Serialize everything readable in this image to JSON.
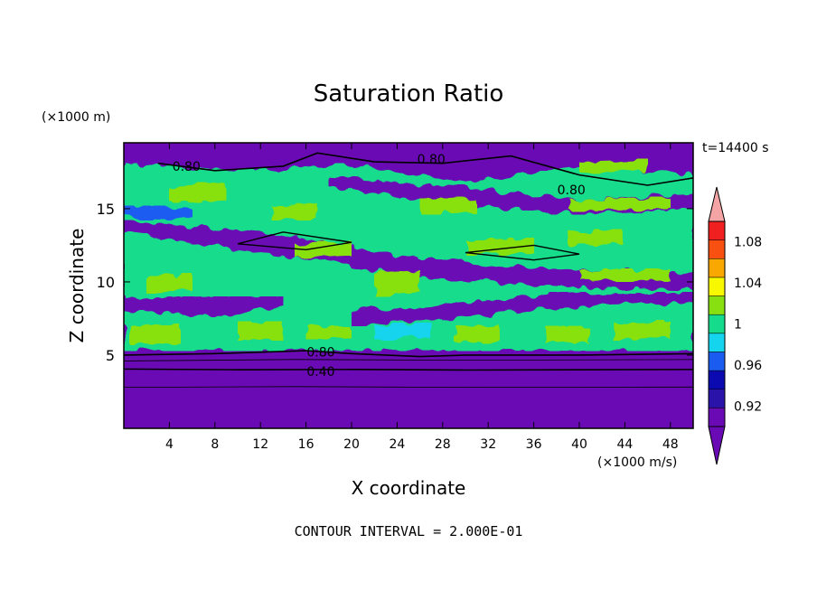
{
  "chart_data": {
    "type": "heatmap",
    "title": "Saturation Ratio",
    "xlabel": "X coordinate",
    "ylabel": "Z coordinate",
    "x_unit": "(×1000 m/s)",
    "y_unit": "(×1000 m)",
    "time_label": "t=14400 s",
    "footer": "CONTOUR INTERVAL = 2.000E-01",
    "xlim": [
      0,
      50
    ],
    "ylim": [
      0,
      19.5
    ],
    "x_ticks": [
      "4",
      "8",
      "12",
      "16",
      "20",
      "24",
      "28",
      "32",
      "36",
      "40",
      "44",
      "48"
    ],
    "x_tick_values": [
      4,
      8,
      12,
      16,
      20,
      24,
      28,
      32,
      36,
      40,
      44,
      48
    ],
    "y_ticks": [
      "5",
      "10",
      "15"
    ],
    "y_tick_values": [
      5,
      10,
      15
    ],
    "contour_labels": [
      {
        "text": "0.80",
        "x": 5.5,
        "z": 17.9
      },
      {
        "text": "0.80",
        "x": 27.0,
        "z": 18.4
      },
      {
        "text": "0.80",
        "x": 39.3,
        "z": 16.3
      },
      {
        "text": "0.80",
        "x": 17.3,
        "z": 5.2
      },
      {
        "text": "0.40",
        "x": 17.3,
        "z": 3.9
      }
    ],
    "colorbar": {
      "labels": [
        "1.08",
        "1.04",
        "1",
        "0.96",
        "0.92"
      ],
      "label_values": [
        1.08,
        1.04,
        1.0,
        0.96,
        0.92
      ],
      "levels": [
        0.9,
        0.92,
        0.94,
        0.96,
        0.98,
        1.0,
        1.02,
        1.04,
        1.06,
        1.08,
        1.1
      ],
      "colors": [
        "#6a0ab4",
        "#2a13a8",
        "#0a0ab0",
        "#1a5cf0",
        "#14d4ee",
        "#14dc8c",
        "#88e010",
        "#f8f800",
        "#f8a800",
        "#f85010",
        "#f02020"
      ],
      "over_color": "#f4a4a4",
      "under_color": "#6a0ab4"
    },
    "colors": {
      "background": "#6a0ab4",
      "green": "#88e010",
      "teal": "#14dc8c",
      "cyan": "#14d4ee",
      "blue": "#1a5cf0",
      "navy": "#2a13a8"
    }
  }
}
